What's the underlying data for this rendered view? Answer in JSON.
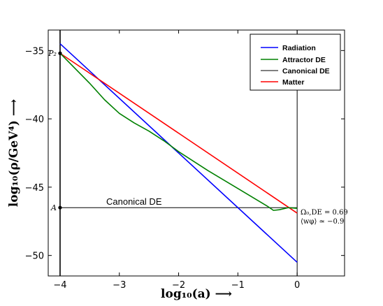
{
  "chart_data": {
    "type": "line",
    "xlabel": "log₁₀(a) ⟶",
    "ylabel": "log₁₀(ρ/GeV⁴) ⟶",
    "xlim": [
      -4.2,
      0.8
    ],
    "ylim": [
      -51.5,
      -33.5
    ],
    "xticks": [
      -4,
      -3,
      -2,
      -1,
      0
    ],
    "xtick_labels": [
      "−4",
      "−3",
      "−2",
      "−1",
      "0"
    ],
    "yticks": [
      -35,
      -40,
      -45,
      -50
    ],
    "ytick_labels": [
      "−35",
      "−40",
      "−45",
      "−50"
    ],
    "grid": false,
    "legend_position": "top-right",
    "series": [
      {
        "name": "Radiation",
        "color": "#0000ff",
        "x": [
          -4,
          0
        ],
        "y": [
          -34.5,
          -50.5
        ]
      },
      {
        "name": "Attractor DE",
        "color": "#008000",
        "x": [
          -4,
          -3.5,
          -3.25,
          -3.0,
          -2.75,
          -2.5,
          -2.25,
          -2.0,
          -1.5,
          -1.0,
          -0.5,
          -0.4,
          -0.3,
          -0.15,
          0
        ],
        "y": [
          -35.2,
          -37.4,
          -38.6,
          -39.6,
          -40.3,
          -40.9,
          -41.6,
          -42.4,
          -43.8,
          -45.1,
          -46.4,
          -46.7,
          -46.65,
          -46.5,
          -46.55
        ]
      },
      {
        "name": "Canonical DE",
        "color": "#000000",
        "x": [
          -4,
          0
        ],
        "y": [
          -46.5,
          -46.5
        ]
      },
      {
        "name": "Matter",
        "color": "#ff0000",
        "x": [
          -4,
          0
        ],
        "y": [
          -35.2,
          -46.9
        ]
      }
    ],
    "vertical_lines": [
      {
        "x": -4,
        "color": "#000000"
      },
      {
        "x": 0,
        "color": "#000000"
      }
    ],
    "points": [
      {
        "label": "P₂",
        "x": -4,
        "y": -35.2
      },
      {
        "label": "A",
        "x": -4,
        "y": -46.5
      }
    ],
    "annotations": {
      "canonical_de": "Canonical DE",
      "omega_line": "Ω₀,DE = 0.69",
      "w_line": "⟨wφ⟩ ≃ −0.9"
    }
  }
}
